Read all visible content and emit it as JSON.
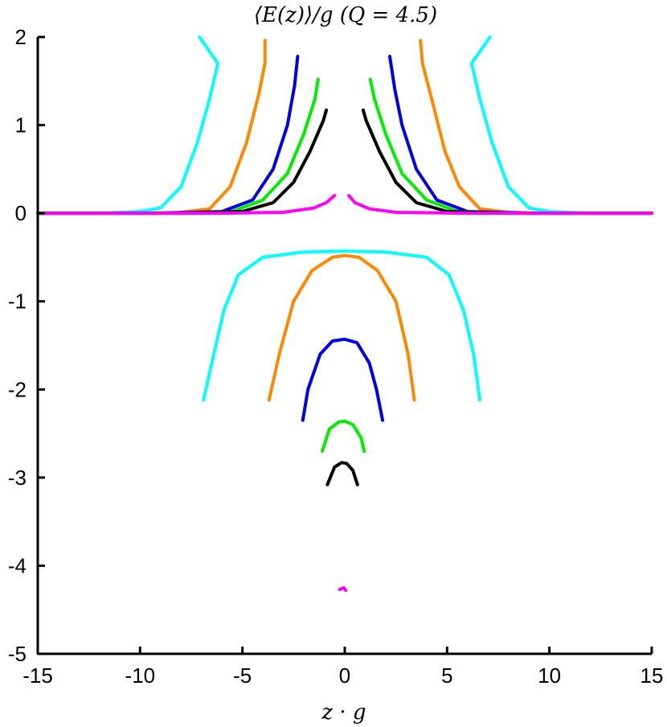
{
  "chart_data": {
    "type": "line",
    "title": "⟨E(z)⟩/g (Q = 4.5)",
    "xlabel": "z · g",
    "ylabel": "",
    "xlim": [
      -15,
      15
    ],
    "ylim": [
      -5,
      2
    ],
    "xticks": [
      -15,
      -10,
      -5,
      0,
      5,
      10,
      15
    ],
    "yticks": [
      -5,
      -4,
      -3,
      -2,
      -1,
      0,
      1,
      2
    ],
    "xtick_labels": [
      "-15",
      "-10",
      "-5",
      "0",
      "5",
      "10",
      "15"
    ],
    "ytick_labels": [
      "-5",
      "-4",
      "-3",
      "-2",
      "-1",
      "0",
      "1",
      "2"
    ],
    "grid": false,
    "series": [
      {
        "color": "#00ffff",
        "segments": [
          [
            [
              -15,
              0
            ],
            [
              -12,
              0.0
            ],
            [
              -10,
              0.02
            ],
            [
              -9,
              0.06
            ],
            [
              -8,
              0.3
            ],
            [
              -7.2,
              0.8
            ],
            [
              -6.6,
              1.3
            ],
            [
              -6.2,
              1.7
            ],
            [
              -7.1,
              2.0
            ]
          ],
          [
            [
              7.1,
              2.0
            ],
            [
              6.2,
              1.7
            ],
            [
              6.6,
              1.3
            ],
            [
              7.2,
              0.8
            ],
            [
              8,
              0.3
            ],
            [
              9,
              0.06
            ],
            [
              10,
              0.02
            ],
            [
              12,
              0.0
            ],
            [
              15,
              0
            ]
          ],
          [
            [
              -6.9,
              -2.12
            ],
            [
              -6.4,
              -1.6
            ],
            [
              -5.9,
              -1.1
            ],
            [
              -5.2,
              -0.7
            ],
            [
              -4,
              -0.5
            ],
            [
              -2,
              -0.44
            ],
            [
              0,
              -0.43
            ],
            [
              2,
              -0.44
            ],
            [
              4,
              -0.5
            ],
            [
              5.1,
              -0.7
            ],
            [
              5.8,
              -1.1
            ],
            [
              6.3,
              -1.6
            ],
            [
              6.6,
              -2.12
            ]
          ]
        ]
      },
      {
        "color": "#ff8800",
        "segments": [
          [
            [
              -15,
              0
            ],
            [
              -10,
              0
            ],
            [
              -8,
              0.01
            ],
            [
              -6.6,
              0.05
            ],
            [
              -5.6,
              0.3
            ],
            [
              -4.8,
              0.8
            ],
            [
              -4.2,
              1.35
            ],
            [
              -3.9,
              1.7
            ],
            [
              -3.9,
              1.96
            ]
          ],
          [
            [
              3.7,
              1.96
            ],
            [
              3.8,
              1.7
            ],
            [
              4.3,
              1.25
            ],
            [
              4.9,
              0.7
            ],
            [
              5.6,
              0.3
            ],
            [
              6.6,
              0.05
            ],
            [
              8,
              0.01
            ],
            [
              10,
              0
            ],
            [
              15,
              0
            ]
          ],
          [
            [
              -3.7,
              -2.12
            ],
            [
              -3.2,
              -1.6
            ],
            [
              -2.5,
              -1.0
            ],
            [
              -1.6,
              -0.65
            ],
            [
              -0.6,
              -0.5
            ],
            [
              0,
              -0.48
            ],
            [
              0.7,
              -0.5
            ],
            [
              1.6,
              -0.65
            ],
            [
              2.5,
              -1.0
            ],
            [
              3.1,
              -1.6
            ],
            [
              3.4,
              -2.12
            ]
          ]
        ]
      },
      {
        "color": "#0000ee",
        "segments": [
          [
            [
              -15,
              0
            ],
            [
              -9,
              0
            ],
            [
              -6,
              0.02
            ],
            [
              -4.5,
              0.15
            ],
            [
              -3.5,
              0.5
            ],
            [
              -2.8,
              1.0
            ],
            [
              -2.45,
              1.45
            ],
            [
              -2.3,
              1.78
            ]
          ],
          [
            [
              2.2,
              1.78
            ],
            [
              2.45,
              1.4
            ],
            [
              2.8,
              1.0
            ],
            [
              3.5,
              0.5
            ],
            [
              4.5,
              0.15
            ],
            [
              6,
              0.02
            ],
            [
              9,
              0
            ],
            [
              15,
              0
            ]
          ],
          [
            [
              -2.05,
              -2.35
            ],
            [
              -1.8,
              -2.0
            ],
            [
              -1.2,
              -1.6
            ],
            [
              -0.6,
              -1.45
            ],
            [
              0,
              -1.43
            ],
            [
              0.6,
              -1.47
            ],
            [
              1.2,
              -1.7
            ],
            [
              1.55,
              -2.0
            ],
            [
              1.85,
              -2.35
            ]
          ]
        ]
      },
      {
        "color": "#00ee00",
        "segments": [
          [
            [
              -15,
              0
            ],
            [
              -8,
              0
            ],
            [
              -5.5,
              0.02
            ],
            [
              -4,
              0.15
            ],
            [
              -2.8,
              0.45
            ],
            [
              -2.0,
              0.9
            ],
            [
              -1.45,
              1.3
            ],
            [
              -1.3,
              1.52
            ]
          ],
          [
            [
              1.25,
              1.52
            ],
            [
              1.45,
              1.3
            ],
            [
              2.0,
              0.9
            ],
            [
              2.8,
              0.45
            ],
            [
              4,
              0.15
            ],
            [
              5.5,
              0.02
            ],
            [
              8,
              0
            ],
            [
              15,
              0
            ]
          ],
          [
            [
              -1.1,
              -2.7
            ],
            [
              -0.75,
              -2.45
            ],
            [
              -0.3,
              -2.37
            ],
            [
              0,
              -2.36
            ],
            [
              0.4,
              -2.4
            ],
            [
              0.8,
              -2.55
            ],
            [
              0.95,
              -2.7
            ]
          ]
        ]
      },
      {
        "color": "#000000",
        "segments": [
          [
            [
              -15,
              0
            ],
            [
              -8,
              0
            ],
            [
              -5,
              0.02
            ],
            [
              -3.5,
              0.12
            ],
            [
              -2.5,
              0.35
            ],
            [
              -1.7,
              0.7
            ],
            [
              -1.05,
              1.05
            ],
            [
              -0.9,
              1.17
            ]
          ],
          [
            [
              0.9,
              1.17
            ],
            [
              1.05,
              1.05
            ],
            [
              1.7,
              0.7
            ],
            [
              2.5,
              0.35
            ],
            [
              3.5,
              0.12
            ],
            [
              5,
              0.02
            ],
            [
              8,
              0
            ],
            [
              15,
              0
            ]
          ],
          [
            [
              -0.85,
              -3.08
            ],
            [
              -0.5,
              -2.88
            ],
            [
              -0.15,
              -2.83
            ],
            [
              0.1,
              -2.84
            ],
            [
              0.4,
              -2.92
            ],
            [
              0.62,
              -3.08
            ]
          ]
        ]
      },
      {
        "color": "#ff00ff",
        "segments": [
          [
            [
              -15,
              0
            ],
            [
              -6,
              0
            ],
            [
              -3,
              0.01
            ],
            [
              -1.5,
              0.06
            ],
            [
              -0.9,
              0.12
            ],
            [
              -0.5,
              0.2
            ]
          ],
          [
            [
              0.2,
              0.2
            ],
            [
              0.5,
              0.12
            ],
            [
              1.2,
              0.05
            ],
            [
              2.5,
              0.01
            ],
            [
              6,
              0
            ],
            [
              15,
              0
            ]
          ],
          [
            [
              -0.25,
              -4.27
            ],
            [
              -0.05,
              -4.25
            ],
            [
              0.05,
              -4.28
            ]
          ]
        ]
      }
    ]
  }
}
